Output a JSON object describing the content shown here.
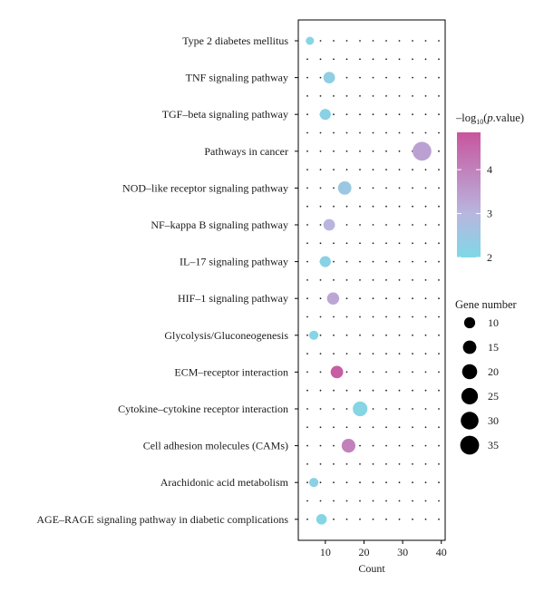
{
  "chart_data": {
    "type": "scatter",
    "xlabel": "Count",
    "ylabel": "",
    "xlim": [
      3,
      41
    ],
    "x_ticks": [
      10,
      20,
      30,
      40
    ],
    "grid": "dotted",
    "categories": [
      "Type 2 diabetes mellitus",
      "TNF signaling pathway",
      "TGF–beta signaling pathway",
      "Pathways in cancer",
      "NOD–like receptor signaling pathway",
      "NF–kappa B signaling pathway",
      "IL–17 signaling pathway",
      "HIF–1 signaling pathway",
      "Glycolysis/Gluconeogenesis",
      "ECM–receptor interaction",
      "Cytokine–cytokine receptor interaction",
      "Cell adhesion molecules (CAMs)",
      "Arachidonic acid metabolism",
      "AGE–RAGE signaling pathway in diabetic complications"
    ],
    "points": [
      {
        "category": "Type 2 diabetes mellitus",
        "count": 6,
        "neg_log10_p": 2.1
      },
      {
        "category": "TNF signaling pathway",
        "count": 11,
        "neg_log10_p": 2.3
      },
      {
        "category": "TGF–beta signaling pathway",
        "count": 10,
        "neg_log10_p": 2.2
      },
      {
        "category": "Pathways in cancer",
        "count": 35,
        "neg_log10_p": 3.4
      },
      {
        "category": "NOD–like receptor signaling pathway",
        "count": 15,
        "neg_log10_p": 2.5
      },
      {
        "category": "NF–kappa B signaling pathway",
        "count": 11,
        "neg_log10_p": 3.0
      },
      {
        "category": "IL–17 signaling pathway",
        "count": 10,
        "neg_log10_p": 2.2
      },
      {
        "category": "HIF–1 signaling pathway",
        "count": 12,
        "neg_log10_p": 3.3
      },
      {
        "category": "Glycolysis/Gluconeogenesis",
        "count": 7,
        "neg_log10_p": 2.1
      },
      {
        "category": "ECM–receptor interaction",
        "count": 13,
        "neg_log10_p": 4.7
      },
      {
        "category": "Cytokine–cytokine receptor interaction",
        "count": 19,
        "neg_log10_p": 2.1
      },
      {
        "category": "Cell adhesion molecules (CAMs)",
        "count": 16,
        "neg_log10_p": 4.0
      },
      {
        "category": "Arachidonic acid metabolism",
        "count": 7,
        "neg_log10_p": 2.2
      },
      {
        "category": "AGE–RAGE signaling pathway in diabetic complications",
        "count": 9,
        "neg_log10_p": 2.1
      }
    ],
    "color_legend": {
      "title_prefix": "–log",
      "title_sub": "10",
      "title_open": "(",
      "title_italic": "p",
      "title_suffix": ".value)",
      "ticks": [
        2,
        3,
        4
      ],
      "range": [
        2,
        4.85
      ],
      "color_low": "#7fd8e6",
      "color_mid": "#b8b6df",
      "color_high": "#c8559e"
    },
    "size_legend": {
      "title": "Gene number",
      "values": [
        10,
        15,
        20,
        25,
        30,
        35
      ]
    },
    "legend_placement": "right"
  }
}
